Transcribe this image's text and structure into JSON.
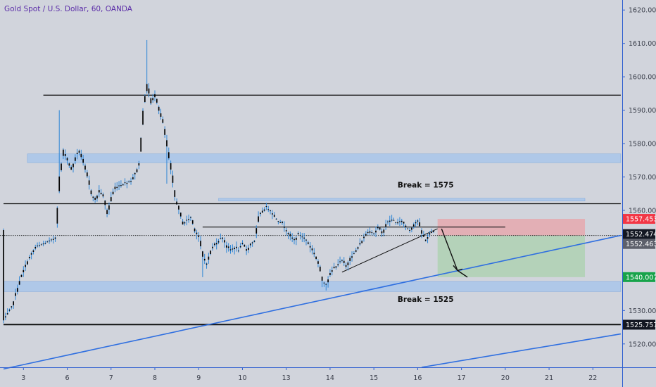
{
  "chart_title": "Gold Spot / U.S. Dollar, 60, OANDA",
  "colors": {
    "background": "#d1d4dc",
    "candle": "#000000",
    "wick": "#2e86d6",
    "zone": "#a9c6ea",
    "trendline": "#2f6fe0",
    "stop_zone": "#e8a3a8",
    "target_zone": "#a9d2ae",
    "tag_red": "#f23645",
    "tag_green": "#17a34a",
    "tag_black": "#131722",
    "tag_gray": "#5d606b"
  },
  "price_tags": {
    "stop": "1557.453",
    "current": "1552.474",
    "entry": "1552.463",
    "target": "1540.007",
    "support": "1525.757"
  },
  "annotations": {
    "break_high": "Break = 1575",
    "break_low": "Break = 1525"
  },
  "chart_data": {
    "type": "line",
    "title": "Gold Spot / U.S. Dollar, 60, OANDA",
    "xlabel": "",
    "ylabel": "",
    "ylim": [
      1513,
      1623
    ],
    "y_ticks": [
      1520,
      1530,
      1540,
      1550,
      1560,
      1570,
      1580,
      1590,
      1600,
      1610,
      1620
    ],
    "y_tick_labels": [
      "1520.000",
      "1530.000",
      "1540.000",
      "1550.000",
      "1560.000",
      "1570.000",
      "1580.000",
      "1590.000",
      "1600.000",
      "1610.000",
      "1620.000"
    ],
    "x_ticks": [
      {
        "label": "3",
        "bar": 5
      },
      {
        "label": "6",
        "bar": 16
      },
      {
        "label": "7",
        "bar": 27
      },
      {
        "label": "8",
        "bar": 38
      },
      {
        "label": "9",
        "bar": 49
      },
      {
        "label": "10",
        "bar": 60
      },
      {
        "label": "13",
        "bar": 71
      },
      {
        "label": "14",
        "bar": 82
      },
      {
        "label": "15",
        "bar": 93
      },
      {
        "label": "16",
        "bar": 104
      },
      {
        "label": "17",
        "bar": 115
      },
      {
        "label": "20",
        "bar": 126
      },
      {
        "label": "21",
        "bar": 137
      },
      {
        "label": "22",
        "bar": 148
      }
    ],
    "bars_visible": 155,
    "price_path": [
      [
        0,
        1527
      ],
      [
        2,
        1531
      ],
      [
        4,
        1539
      ],
      [
        6,
        1545
      ],
      [
        8,
        1549
      ],
      [
        10,
        1550
      ],
      [
        12,
        1551
      ],
      [
        13,
        1552
      ],
      [
        14,
        1570
      ],
      [
        15,
        1578
      ],
      [
        16,
        1575
      ],
      [
        17,
        1572
      ],
      [
        18,
        1576
      ],
      [
        19,
        1578
      ],
      [
        20,
        1574
      ],
      [
        21,
        1570
      ],
      [
        22,
        1565
      ],
      [
        23,
        1563
      ],
      [
        24,
        1566
      ],
      [
        25,
        1564
      ],
      [
        26,
        1559
      ],
      [
        27,
        1564
      ],
      [
        28,
        1567
      ],
      [
        30,
        1568
      ],
      [
        32,
        1569
      ],
      [
        33,
        1571
      ],
      [
        34,
        1574
      ],
      [
        35,
        1590
      ],
      [
        36,
        1598
      ],
      [
        37,
        1592
      ],
      [
        38,
        1595
      ],
      [
        39,
        1590
      ],
      [
        40,
        1586
      ],
      [
        41,
        1579
      ],
      [
        42,
        1572
      ],
      [
        43,
        1564
      ],
      [
        44,
        1560
      ],
      [
        45,
        1556
      ],
      [
        46,
        1557
      ],
      [
        47,
        1558
      ],
      [
        48,
        1554
      ],
      [
        49,
        1552
      ],
      [
        50,
        1546
      ],
      [
        51,
        1544
      ],
      [
        52,
        1548
      ],
      [
        53,
        1550
      ],
      [
        54,
        1551
      ],
      [
        55,
        1552
      ],
      [
        56,
        1549
      ],
      [
        57,
        1548
      ],
      [
        58,
        1549
      ],
      [
        59,
        1548
      ],
      [
        60,
        1550
      ],
      [
        61,
        1548
      ],
      [
        62,
        1550
      ],
      [
        63,
        1551
      ],
      [
        64,
        1558
      ],
      [
        65,
        1560
      ],
      [
        66,
        1561
      ],
      [
        67,
        1560
      ],
      [
        68,
        1558
      ],
      [
        69,
        1557
      ],
      [
        70,
        1556
      ],
      [
        71,
        1554
      ],
      [
        72,
        1552
      ],
      [
        73,
        1551
      ],
      [
        74,
        1553
      ],
      [
        75,
        1552
      ],
      [
        76,
        1551
      ],
      [
        77,
        1549
      ],
      [
        78,
        1547
      ],
      [
        79,
        1544
      ],
      [
        80,
        1539
      ],
      [
        81,
        1538
      ],
      [
        82,
        1541
      ],
      [
        83,
        1543
      ],
      [
        84,
        1544
      ],
      [
        85,
        1545
      ],
      [
        86,
        1543
      ],
      [
        87,
        1546
      ],
      [
        88,
        1547
      ],
      [
        89,
        1549
      ],
      [
        90,
        1551
      ],
      [
        91,
        1553
      ],
      [
        92,
        1554
      ],
      [
        93,
        1553
      ],
      [
        94,
        1555
      ],
      [
        95,
        1553
      ],
      [
        96,
        1556
      ],
      [
        97,
        1557
      ],
      [
        98,
        1557
      ],
      [
        99,
        1556
      ],
      [
        100,
        1557
      ],
      [
        101,
        1555
      ],
      [
        102,
        1554
      ],
      [
        103,
        1556
      ],
      [
        104,
        1557
      ],
      [
        105,
        1553
      ],
      [
        106,
        1551
      ],
      [
        107,
        1553
      ],
      [
        108,
        1554
      ]
    ],
    "spikes": [
      {
        "bar": 14,
        "high": 1590
      },
      {
        "bar": 36,
        "high": 1611
      },
      {
        "bar": 41,
        "low": 1568
      },
      {
        "bar": 50,
        "low": 1540
      },
      {
        "bar": 80,
        "low": 1537
      },
      {
        "bar": 81,
        "low": 1536
      }
    ],
    "horizontal_lines": [
      {
        "price": 1594.5,
        "from_bar": 10,
        "to_bar": 155,
        "width": 1.2
      },
      {
        "price": 1562.0,
        "from_bar": 0,
        "to_bar": 155,
        "width": 1.2
      },
      {
        "price": 1555.0,
        "from_bar": 50,
        "to_bar": 126,
        "width": 1.2
      },
      {
        "price": 1525.8,
        "from_bar": 0,
        "to_bar": 155,
        "width": 2
      }
    ],
    "zones": [
      {
        "from_bar": 6,
        "to_bar": 155,
        "low": 1574.3,
        "high": 1576.9
      },
      {
        "from_bar": 54,
        "to_bar": 146,
        "low": 1562.8,
        "high": 1563.6
      },
      {
        "from_bar": 0,
        "to_bar": 155,
        "low": 1535.7,
        "high": 1538.7
      }
    ],
    "trendlines": [
      {
        "p1": [
          0,
          1512.5
        ],
        "p2": [
          155,
          1552.5
        ],
        "color": "#2f6fe0",
        "width": 1.6
      },
      {
        "p1": [
          105,
          1513
        ],
        "p2": [
          155,
          1523
        ],
        "color": "#2f6fe0",
        "width": 1.6
      },
      {
        "p1": [
          85,
          1541.5
        ],
        "p2": [
          109,
          1554.5
        ],
        "color": "#111111",
        "width": 1
      }
    ],
    "position": {
      "from_bar": 109,
      "to_bar": 146,
      "entry": 1552.463,
      "stop": 1557.453,
      "target": 1540.007
    },
    "projection": [
      [
        110,
        1554.5
      ],
      [
        114,
        1542
      ],
      [
        116.5,
        1540
      ]
    ],
    "price_tags": [
      1557.453,
      1552.474,
      1552.463,
      1540.007,
      1525.757
    ],
    "current_price": 1552.474,
    "annotations": [
      {
        "text": "Break = 1575",
        "bar": 106,
        "price": 1566.8
      },
      {
        "text": "Break = 1525",
        "bar": 106,
        "price": 1532.6
      }
    ]
  }
}
